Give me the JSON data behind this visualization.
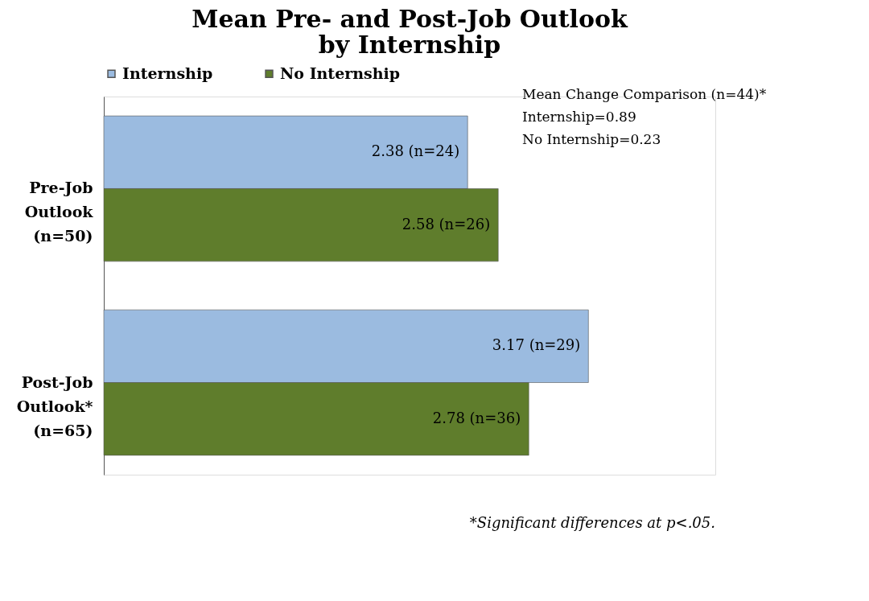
{
  "chart_data": {
    "type": "bar",
    "orientation": "horizontal",
    "title": "Mean Pre- and Post-Job Outlook\nby Internship",
    "categories": [
      "Pre-Job Outlook (n=50)",
      "Post-Job Outlook* (n=65)"
    ],
    "series": [
      {
        "name": "Internship",
        "color": "#9bbbe0",
        "values": [
          2.38,
          3.17
        ],
        "value_labels": [
          "2.38 (n=24)",
          "3.17 (n=29)"
        ]
      },
      {
        "name": "No Internship",
        "color": "#5f7d2c",
        "values": [
          2.58,
          2.78
        ],
        "value_labels": [
          "2.58 (n=26)",
          "2.78 (n=36)"
        ]
      }
    ],
    "xlim": [
      0,
      4
    ],
    "tick_labels": "y",
    "legend": "top",
    "annotations": [
      "Mean Change Comparison (n=44)*",
      "Internship=0.89",
      "No Internship=0.23",
      "*Significant differences at p<.05."
    ]
  }
}
